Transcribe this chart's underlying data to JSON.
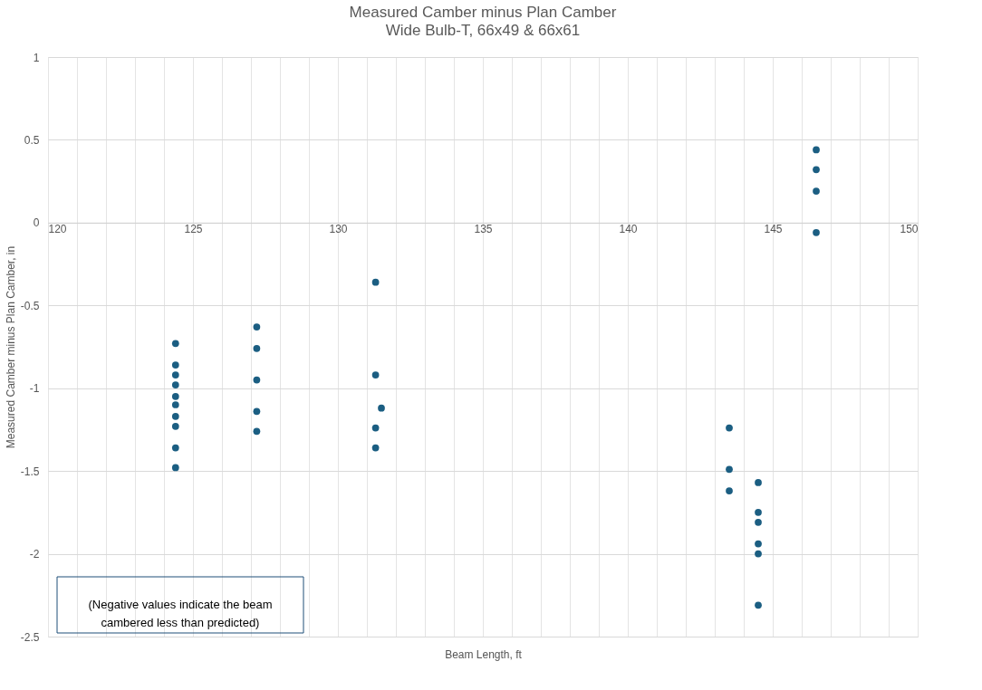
{
  "chart_data": {
    "type": "scatter",
    "title": "Measured Camber minus Plan Camber",
    "subtitle": "Wide Bulb-T, 66x49 & 66x61",
    "xlabel": "Beam Length, ft",
    "ylabel": "Measured Camber minus Plan Camber, in",
    "series": [
      {
        "color": "#1b5e82",
        "x": [
          124.4,
          124.4,
          124.4,
          124.4,
          124.4,
          124.4,
          124.4,
          124.4,
          124.4,
          124.4,
          127.2,
          127.2,
          127.2,
          127.2,
          127.2,
          131.3,
          131.3,
          131.5,
          131.3,
          131.3,
          143.5,
          143.5,
          143.5,
          144.5,
          144.5,
          144.5,
          144.5,
          144.5,
          144.5,
          146.5,
          146.5,
          146.5,
          146.5
        ],
        "values": [
          -0.73,
          -0.86,
          -0.92,
          -0.98,
          -1.05,
          -1.1,
          -1.17,
          -1.23,
          -1.36,
          -1.48,
          -0.63,
          -0.76,
          -0.95,
          -1.14,
          -1.26,
          -0.36,
          -0.92,
          -1.12,
          -1.24,
          -1.36,
          -1.24,
          -1.49,
          -1.62,
          -1.57,
          -1.75,
          -1.81,
          -1.94,
          -2.0,
          -2.31,
          0.44,
          0.32,
          0.19,
          -0.06
        ]
      }
    ],
    "xlim": [
      120,
      150
    ],
    "xticks": [
      120,
      {
        "value": 121,
        "label": null
      },
      {
        "value": 122,
        "label": null
      },
      {
        "value": 123,
        "label": null
      },
      {
        "value": 124,
        "label": null
      },
      125,
      {
        "value": 126,
        "label": null
      },
      {
        "value": 127,
        "label": null
      },
      {
        "value": 128,
        "label": null
      },
      {
        "value": 129,
        "label": null
      },
      130,
      {
        "value": 131,
        "label": null
      },
      {
        "value": 132,
        "label": null
      },
      {
        "value": 133,
        "label": null
      },
      {
        "value": 134,
        "label": null
      },
      135,
      {
        "value": 136,
        "label": null
      },
      {
        "value": 137,
        "label": null
      },
      {
        "value": 138,
        "label": null
      },
      {
        "value": 139,
        "label": null
      },
      140,
      {
        "value": 141,
        "label": null
      },
      {
        "value": 142,
        "label": null
      },
      {
        "value": 143,
        "label": null
      },
      {
        "value": 144,
        "label": null
      },
      145,
      {
        "value": 146,
        "label": null
      },
      {
        "value": 147,
        "label": null
      },
      {
        "value": 148,
        "label": null
      },
      {
        "value": 149,
        "label": null
      },
      150
    ],
    "ylim": [
      -2.5,
      1
    ],
    "yticks": [
      -2.5,
      -2,
      -1.5,
      -1,
      -0.5,
      0,
      0.5,
      1
    ],
    "grid": true,
    "marker": "circle",
    "legend": false,
    "annotations": [
      "(Negative values indicate the beam\ncambered less than predicted)"
    ]
  }
}
